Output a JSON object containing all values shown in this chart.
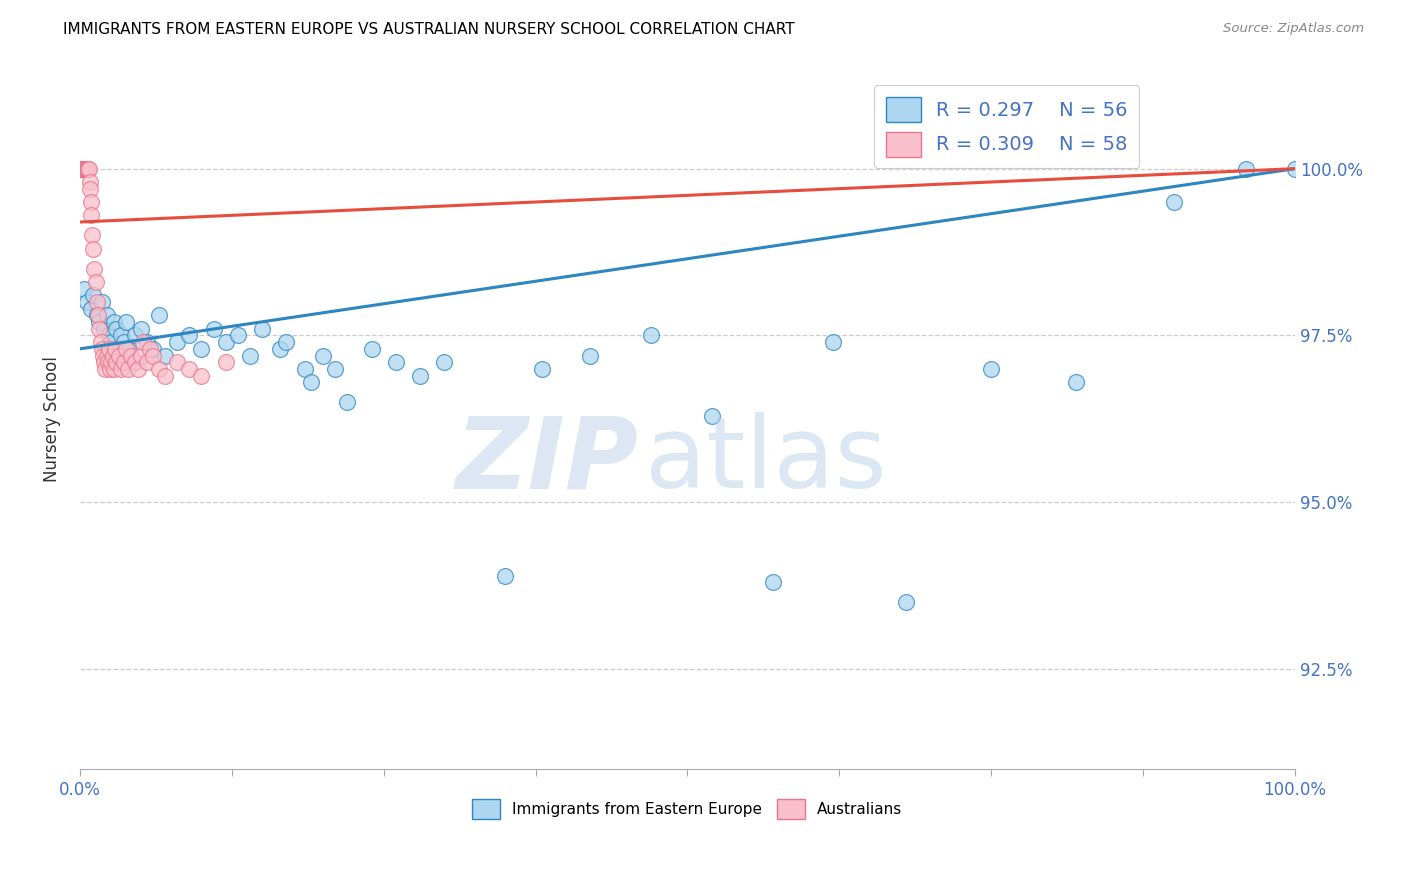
{
  "title": "IMMIGRANTS FROM EASTERN EUROPE VS AUSTRALIAN NURSERY SCHOOL CORRELATION CHART",
  "source": "Source: ZipAtlas.com",
  "ylabel": "Nursery School",
  "ymax": 101.5,
  "ymin": 91.0,
  "xmax": 100.0,
  "xmin": 0.0,
  "blue_color": "#AED6F1",
  "pink_color": "#F1948A",
  "blue_line_color": "#2E86C1",
  "pink_line_color": "#E74C3C",
  "blue_scatter_x": [
    0.3,
    0.6,
    0.9,
    1.1,
    1.4,
    1.6,
    1.8,
    2.0,
    2.2,
    2.4,
    2.6,
    2.8,
    3.0,
    3.2,
    3.4,
    3.6,
    3.8,
    4.0,
    4.5,
    5.0,
    5.5,
    6.0,
    6.5,
    7.0,
    8.0,
    9.0,
    10.0,
    11.0,
    12.0,
    13.0,
    14.0,
    15.0,
    16.5,
    17.0,
    18.5,
    19.0,
    20.0,
    21.0,
    22.0,
    24.0,
    26.0,
    28.0,
    30.0,
    35.0,
    38.0,
    42.0,
    47.0,
    52.0,
    57.0,
    62.0,
    68.0,
    75.0,
    82.0,
    90.0,
    96.0,
    100.0
  ],
  "blue_scatter_y": [
    98.2,
    98.0,
    97.9,
    98.1,
    97.8,
    97.7,
    98.0,
    97.6,
    97.8,
    97.5,
    97.4,
    97.7,
    97.6,
    97.3,
    97.5,
    97.4,
    97.7,
    97.3,
    97.5,
    97.6,
    97.4,
    97.3,
    97.8,
    97.2,
    97.4,
    97.5,
    97.3,
    97.6,
    97.4,
    97.5,
    97.2,
    97.6,
    97.3,
    97.4,
    97.0,
    96.8,
    97.2,
    97.0,
    96.5,
    97.3,
    97.1,
    96.9,
    97.1,
    93.9,
    97.0,
    97.2,
    97.5,
    96.3,
    93.8,
    97.4,
    93.5,
    97.0,
    96.8,
    99.5,
    100.0,
    100.0
  ],
  "pink_scatter_x": [
    0.1,
    0.15,
    0.2,
    0.25,
    0.3,
    0.35,
    0.4,
    0.45,
    0.5,
    0.55,
    0.6,
    0.65,
    0.7,
    0.75,
    0.8,
    0.85,
    0.9,
    0.95,
    1.0,
    1.1,
    1.2,
    1.3,
    1.4,
    1.5,
    1.6,
    1.7,
    1.8,
    1.9,
    2.0,
    2.1,
    2.2,
    2.3,
    2.4,
    2.5,
    2.6,
    2.7,
    2.8,
    2.9,
    3.0,
    3.2,
    3.4,
    3.6,
    3.8,
    4.0,
    4.2,
    4.5,
    4.8,
    5.0,
    5.2,
    5.5,
    5.8,
    6.0,
    6.5,
    7.0,
    8.0,
    9.0,
    10.0,
    12.0
  ],
  "pink_scatter_y": [
    100.0,
    100.0,
    100.0,
    100.0,
    100.0,
    100.0,
    100.0,
    100.0,
    100.0,
    100.0,
    100.0,
    100.0,
    100.0,
    100.0,
    99.8,
    99.7,
    99.5,
    99.3,
    99.0,
    98.8,
    98.5,
    98.3,
    98.0,
    97.8,
    97.6,
    97.4,
    97.3,
    97.2,
    97.1,
    97.0,
    97.2,
    97.1,
    97.3,
    97.0,
    97.1,
    97.2,
    97.0,
    97.3,
    97.1,
    97.2,
    97.0,
    97.1,
    97.3,
    97.0,
    97.2,
    97.1,
    97.0,
    97.2,
    97.4,
    97.1,
    97.3,
    97.2,
    97.0,
    96.9,
    97.1,
    97.0,
    96.9,
    97.1
  ]
}
